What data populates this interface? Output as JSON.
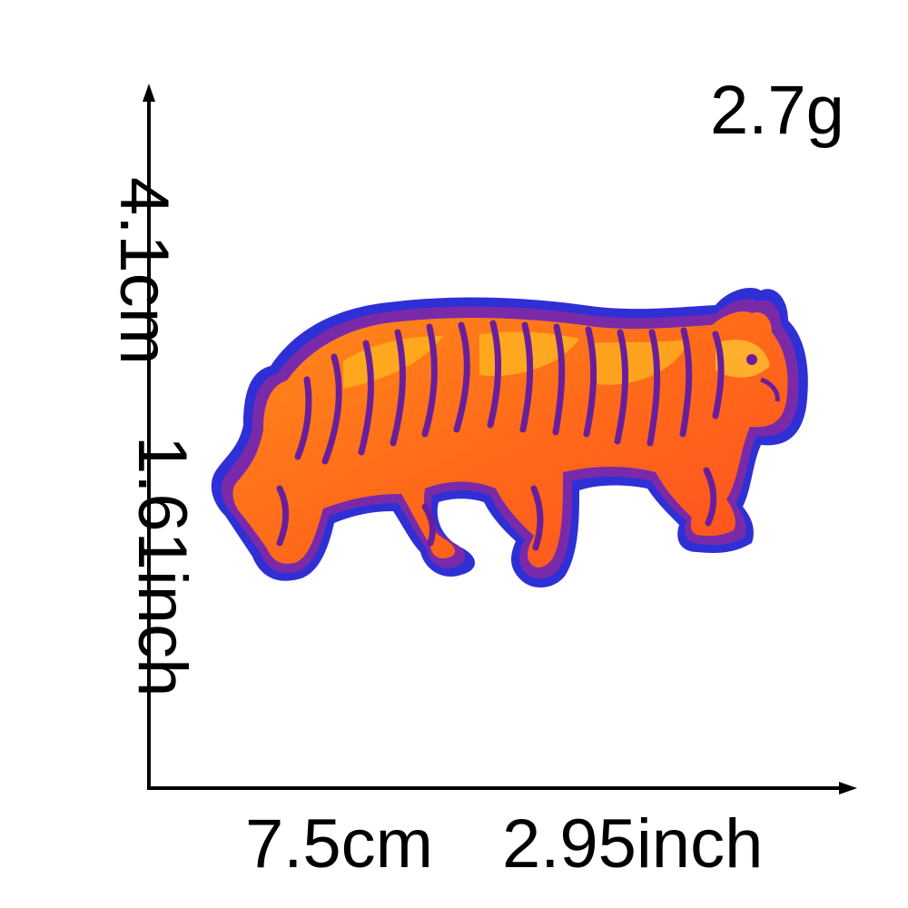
{
  "dimensions": {
    "weight": "2.7g",
    "height_cm": "4.1cm",
    "height_inch": "1.61inch",
    "width_cm": "7.5cm",
    "width_inch": "2.95inch"
  },
  "image": {
    "subject": "tiger-embroidered-patch",
    "colors": {
      "border": "#2f2fd6",
      "outline": "#7a2aa8",
      "body": "#ff6a1a",
      "highlight": "#ffb020",
      "stripe": "#6a1f9a"
    }
  }
}
